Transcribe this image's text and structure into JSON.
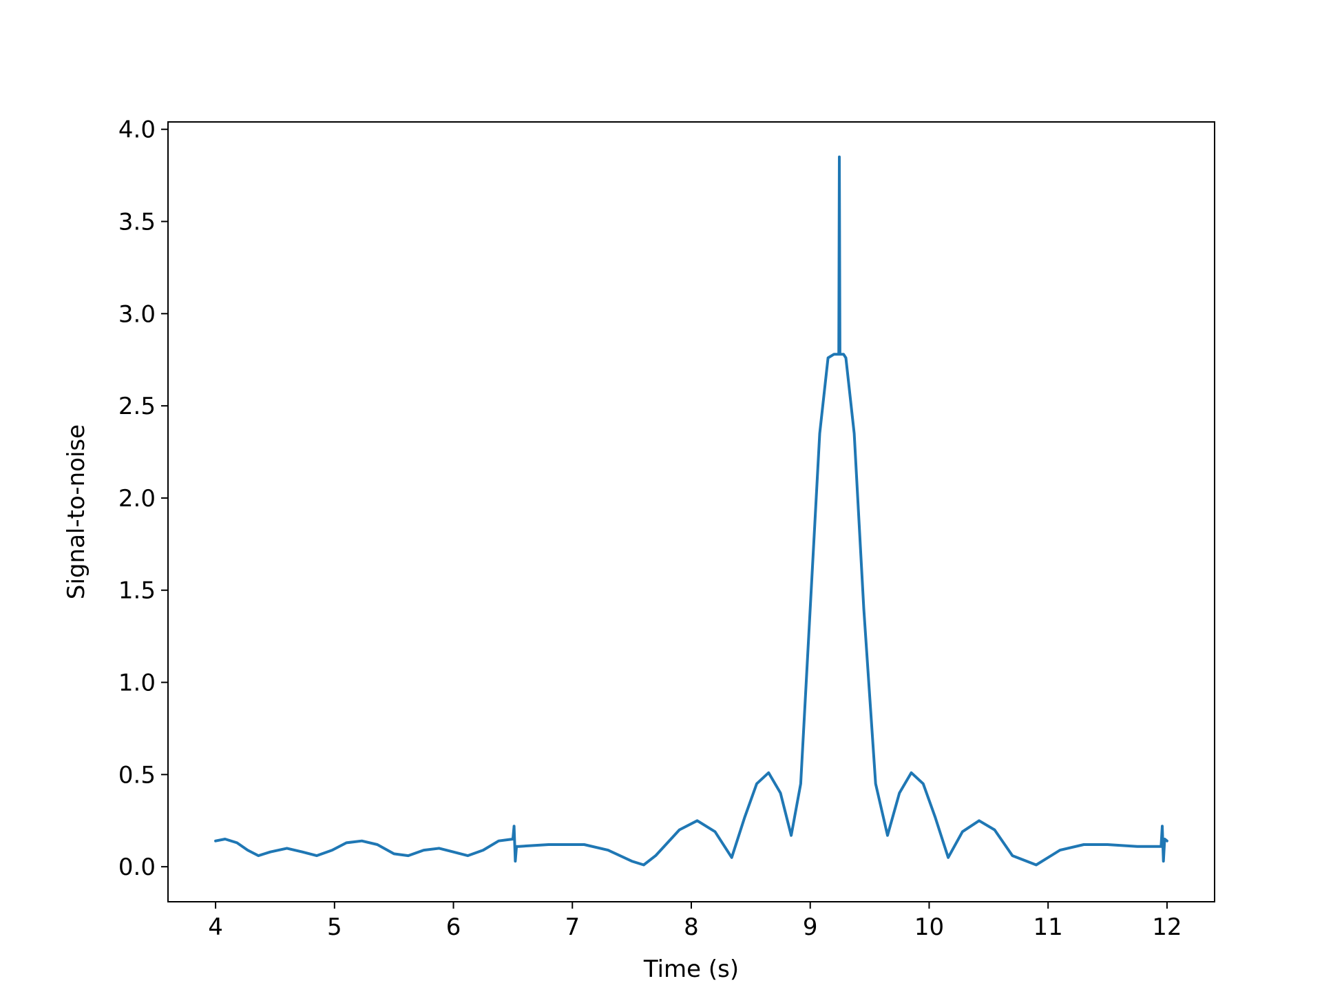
{
  "chart_data": {
    "type": "line",
    "title": "",
    "xlabel": "Time (s)",
    "ylabel": "Signal-to-noise",
    "xlim": [
      3.6,
      12.4
    ],
    "ylim": [
      -0.19,
      4.04
    ],
    "xticks": [
      4,
      5,
      6,
      7,
      8,
      9,
      10,
      11,
      12
    ],
    "xtick_labels": [
      "4",
      "5",
      "6",
      "7",
      "8",
      "9",
      "10",
      "11",
      "12"
    ],
    "yticks": [
      0.0,
      0.5,
      1.0,
      1.5,
      2.0,
      2.5,
      3.0,
      3.5,
      4.0
    ],
    "ytick_labels": [
      "0.0",
      "0.5",
      "1.0",
      "1.5",
      "2.0",
      "2.5",
      "3.0",
      "3.5",
      "4.0"
    ],
    "grid": false,
    "legend": "none",
    "series": [
      {
        "color": "#1f77b4",
        "x": [
          4.0,
          4.08,
          4.18,
          4.27,
          4.36,
          4.46,
          4.6,
          4.73,
          4.85,
          4.98,
          5.1,
          5.23,
          5.36,
          5.5,
          5.62,
          5.75,
          5.88,
          6.0,
          6.12,
          6.25,
          6.38,
          6.5,
          6.51,
          6.52,
          6.53,
          6.55,
          6.8,
          7.1,
          7.3,
          7.5,
          7.6,
          7.7,
          7.9,
          8.05,
          8.2,
          8.34,
          8.45,
          8.55,
          8.65,
          8.75,
          8.84,
          8.92,
          9.0,
          9.08,
          9.15,
          9.2,
          9.22,
          9.24,
          9.245,
          9.25,
          9.255,
          9.26,
          9.28,
          9.3,
          9.37,
          9.45,
          9.55,
          9.65,
          9.75,
          9.85,
          9.95,
          10.05,
          10.16,
          10.28,
          10.42,
          10.55,
          10.7,
          10.9,
          11.1,
          11.3,
          11.5,
          11.75,
          11.95,
          11.96,
          11.97,
          11.98,
          12.0
        ],
        "y": [
          0.14,
          0.15,
          0.13,
          0.09,
          0.06,
          0.08,
          0.1,
          0.08,
          0.06,
          0.09,
          0.13,
          0.14,
          0.12,
          0.07,
          0.06,
          0.09,
          0.1,
          0.08,
          0.06,
          0.09,
          0.14,
          0.15,
          0.22,
          0.03,
          0.11,
          0.11,
          0.12,
          0.12,
          0.09,
          0.03,
          0.01,
          0.06,
          0.2,
          0.25,
          0.19,
          0.05,
          0.27,
          0.45,
          0.51,
          0.4,
          0.17,
          0.45,
          1.4,
          2.35,
          2.76,
          2.78,
          2.78,
          2.78,
          3.85,
          2.78,
          2.78,
          2.78,
          2.78,
          2.76,
          2.35,
          1.4,
          0.45,
          0.17,
          0.4,
          0.51,
          0.45,
          0.27,
          0.05,
          0.19,
          0.25,
          0.2,
          0.06,
          0.01,
          0.09,
          0.12,
          0.12,
          0.11,
          0.11,
          0.22,
          0.03,
          0.15,
          0.14
        ]
      }
    ]
  }
}
